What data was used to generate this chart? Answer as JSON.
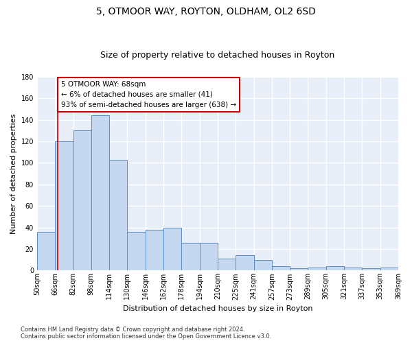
{
  "title": "5, OTMOOR WAY, ROYTON, OLDHAM, OL2 6SD",
  "subtitle": "Size of property relative to detached houses in Royton",
  "xlabel": "Distribution of detached houses by size in Royton",
  "ylabel": "Number of detached properties",
  "bar_values": [
    36,
    120,
    130,
    144,
    103,
    36,
    38,
    40,
    26,
    26,
    11,
    14,
    10,
    4,
    2,
    3,
    4,
    3,
    2,
    3
  ],
  "bar_labels": [
    "50sqm",
    "66sqm",
    "82sqm",
    "98sqm",
    "114sqm",
    "130sqm",
    "146sqm",
    "162sqm",
    "178sqm",
    "194sqm",
    "210sqm",
    "225sqm",
    "241sqm",
    "257sqm",
    "273sqm",
    "289sqm",
    "305sqm",
    "321sqm",
    "337sqm",
    "353sqm",
    "369sqm"
  ],
  "bar_color": "#c5d8f0",
  "bar_edge_color": "#5b8ec4",
  "ylim": [
    0,
    180
  ],
  "yticks": [
    0,
    20,
    40,
    60,
    80,
    100,
    120,
    140,
    160,
    180
  ],
  "vline_color": "#cc0000",
  "annotation_text": "5 OTMOOR WAY: 68sqm\n← 6% of detached houses are smaller (41)\n93% of semi-detached houses are larger (638) →",
  "annotation_box_facecolor": "#ffffff",
  "annotation_box_edgecolor": "#cc0000",
  "footer_text": "Contains HM Land Registry data © Crown copyright and database right 2024.\nContains public sector information licensed under the Open Government Licence v3.0.",
  "fig_facecolor": "#ffffff",
  "ax_facecolor": "#e8eef8",
  "grid_color": "#ffffff",
  "title_fontsize": 10,
  "subtitle_fontsize": 9,
  "xlabel_fontsize": 8,
  "ylabel_fontsize": 8,
  "tick_fontsize": 7,
  "footer_fontsize": 6
}
